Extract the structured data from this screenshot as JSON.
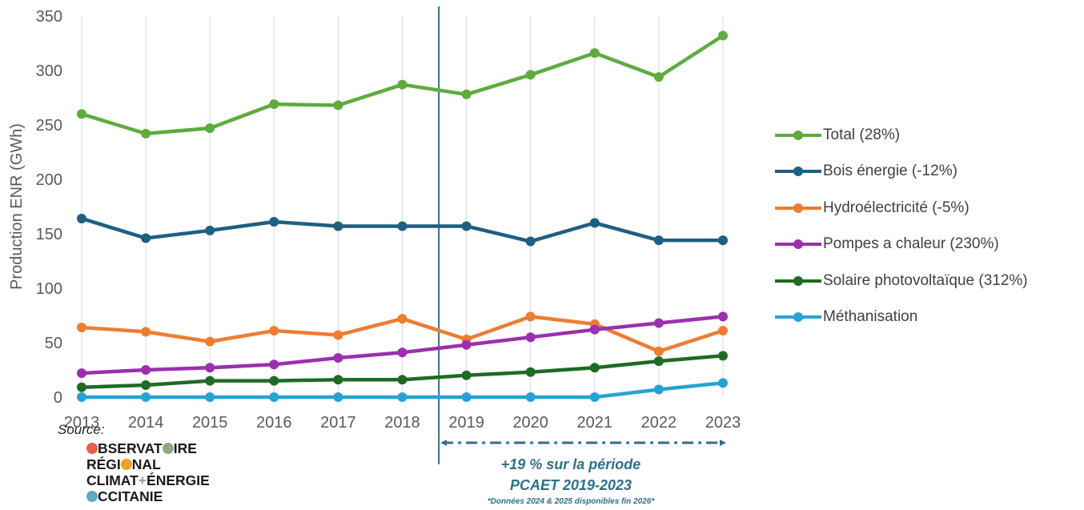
{
  "chart_data": {
    "type": "line",
    "x": [
      2013,
      2014,
      2015,
      2016,
      2017,
      2018,
      2019,
      2020,
      2021,
      2022,
      2023
    ],
    "x_tick_labels": [
      "2013",
      "2014",
      "2015",
      "2016",
      "2017",
      "2018",
      "2019",
      "2020",
      "2021",
      "2022",
      "2023"
    ],
    "ylabel": "Production ENR (GWh)",
    "ylim": [
      0,
      350
    ],
    "y_ticks": [
      0,
      50,
      100,
      150,
      200,
      250,
      300,
      350
    ],
    "grid": "vertical",
    "legend_position": "right",
    "series": [
      {
        "name": "Total (28%)",
        "color": "#5dac3e",
        "values": [
          260,
          242,
          247,
          269,
          268,
          287,
          278,
          296,
          316,
          294,
          332
        ]
      },
      {
        "name": "Bois énergie (-12%)",
        "color": "#1e5f82",
        "values": [
          164,
          146,
          153,
          161,
          157,
          157,
          157,
          143,
          160,
          144,
          144
        ]
      },
      {
        "name": "Hydroélectricité (-5%)",
        "color": "#ed7d31",
        "values": [
          64,
          60,
          51,
          61,
          57,
          72,
          53,
          74,
          67,
          42,
          61
        ]
      },
      {
        "name": "Pompes a chaleur (230%)",
        "color": "#9b2fae",
        "values": [
          22,
          25,
          27,
          30,
          36,
          41,
          48,
          55,
          62,
          68,
          74
        ]
      },
      {
        "name": "Solaire photovoltaïque (312%)",
        "color": "#1e6b24",
        "values": [
          9,
          11,
          15,
          15,
          16,
          16,
          20,
          23,
          27,
          33,
          38
        ]
      },
      {
        "name": "Méthanisation",
        "color": "#27a2d6",
        "values": [
          0,
          0,
          0,
          0,
          0,
          0,
          0,
          0,
          0,
          7,
          13
        ]
      }
    ],
    "annotations": {
      "divider_between": [
        2018,
        2019
      ],
      "period_arrow": [
        2019,
        2023
      ],
      "period_color": "#2e6f8c",
      "line1": "+19 % sur la période",
      "line2": "PCAET 2019-2023",
      "note": "*Données 2024 & 2025 disponibles fin 2026*"
    }
  },
  "source": {
    "label": "Source:",
    "logo_lines": [
      "BSERVAT",
      "IRE",
      "RÉGI",
      "NAL",
      "CLIMAT",
      "ÉNERGIE",
      "CCITANIE"
    ],
    "logo_dot_colors": [
      "#e8604c",
      "#8fa882",
      "#f0a12c",
      "#5fa9c4"
    ]
  }
}
